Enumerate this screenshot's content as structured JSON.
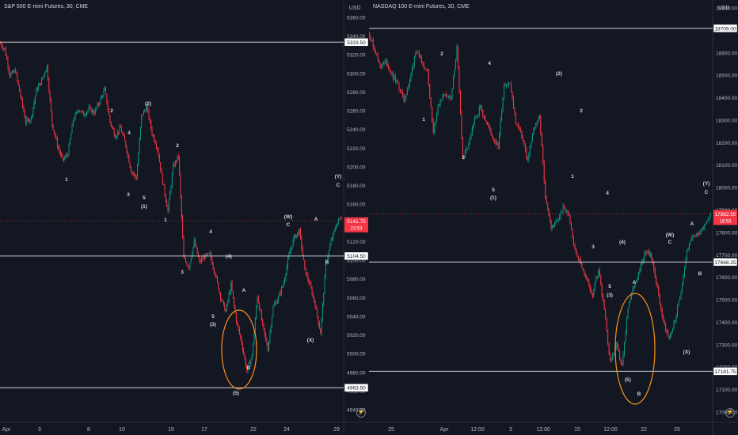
{
  "charts": [
    {
      "id": "spx",
      "title": "S&P 500 E-mini Futures, 30, CME",
      "currency": "USD",
      "y_ticks": [
        5360,
        5340,
        5320,
        5300,
        5280,
        5260,
        5240,
        5220,
        5200,
        5180,
        5160,
        5140,
        5120,
        5100,
        5080,
        5060,
        5040,
        5020,
        5000,
        4980,
        4960,
        4940
      ],
      "y_tick_labels": [
        "5360.00",
        "5340.00",
        "5320.00",
        "5300.00",
        "5280.00",
        "5260.00",
        "5240.00",
        "5220.00",
        "5200.00",
        "5180.00",
        "5160.00",
        "5140.00",
        "5120.00",
        "5100.00",
        "5080.00",
        "5060.00",
        "5040.00",
        "5020.00",
        "5000.00",
        "4980.00",
        "4960.00",
        "4940.00"
      ],
      "x_labels": [
        "Apr",
        "3",
        "8",
        "10",
        "15",
        "17",
        "22",
        "24",
        "29"
      ],
      "levels": [
        {
          "value": 5333.5,
          "label": "5333.50"
        },
        {
          "value": 5104.5,
          "label": "5104.50"
        },
        {
          "value": 4963.5,
          "label": "4963.50"
        }
      ],
      "last_price": {
        "value": 5141.75,
        "label": "5141.75",
        "countdown": "23:53"
      },
      "annotations": [
        "1",
        "2",
        "3",
        "4",
        "5",
        "(1)",
        "(2)",
        "1",
        "2",
        "3",
        "4",
        "5",
        "(3)",
        "(4)",
        "A",
        "B",
        "(5)",
        "(W)",
        "C",
        "(X)",
        "A",
        "B",
        "(Y)",
        "C"
      ]
    },
    {
      "id": "ndx",
      "title": "NASDAQ 100 E-mini Futures, 30, CME",
      "currency": "USD",
      "y_ticks": [
        18800,
        18700,
        18600,
        18500,
        18400,
        18300,
        18200,
        18100,
        18000,
        17900,
        17800,
        17700,
        17600,
        17500,
        17400,
        17300,
        17200,
        17100,
        17000
      ],
      "y_tick_labels": [
        "18800.00",
        "18700.00",
        "18600.00",
        "18500.00",
        "18400.00",
        "18300.00",
        "18200.00",
        "18100.00",
        "18000.00",
        "17900.00",
        "17800.00",
        "17700.00",
        "17600.00",
        "17500.00",
        "17400.00",
        "17300.00",
        "17200.00",
        "17100.00",
        "17000.00"
      ],
      "x_labels": [
        "25",
        "Apr",
        "12:00",
        "3",
        "12:00",
        "15",
        "12:00",
        "22",
        "25"
      ],
      "levels": [
        {
          "value": 18709.0,
          "label": "18709.00"
        },
        {
          "value": 17668.25,
          "label": "17668.25"
        },
        {
          "value": 17181.75,
          "label": "17181.75"
        }
      ],
      "last_price": {
        "value": 17882.5,
        "label": "17882.50",
        "countdown": "16:53"
      },
      "annotations": [
        "1",
        "2",
        "3",
        "4",
        "5",
        "(1)",
        "(2)",
        "1",
        "2",
        "3",
        "4",
        "5",
        "(3)",
        "(4)",
        "A",
        "B",
        "(5)",
        "(W)",
        "C",
        "(X)",
        "A",
        "B",
        "(Y)",
        "C"
      ]
    }
  ],
  "chart_data": [
    {
      "type": "candlestick",
      "title": "S&P 500 E-mini Futures, 30, CME",
      "ylabel": "USD",
      "ylim": [
        4930,
        5370
      ],
      "x_tick_labels": [
        "Apr",
        "3",
        "8",
        "10",
        "15",
        "17",
        "22",
        "24",
        "29"
      ],
      "path_values": [
        5333,
        5326,
        5298,
        5303,
        5276,
        5248,
        5252,
        5282,
        5292,
        5308,
        5246,
        5223,
        5207,
        5214,
        5250,
        5262,
        5256,
        5262,
        5258,
        5270,
        5283,
        5248,
        5233,
        5242,
        5223,
        5196,
        5188,
        5255,
        5264,
        5236,
        5220,
        5184,
        5153,
        5200,
        5212,
        5102,
        5093,
        5120,
        5098,
        5104,
        5106,
        5085,
        5061,
        5045,
        5074,
        5035,
        5012,
        4982,
        4998,
        5062,
        5030,
        5005,
        5050,
        5060,
        5076,
        5105,
        5125,
        5131,
        5090,
        5073,
        5052,
        5022,
        5095,
        5120,
        5138,
        5148
      ],
      "levels": [
        5333.5,
        5104.5,
        4963.5
      ],
      "last_price": 5141.75
    },
    {
      "type": "candlestick",
      "title": "NASDAQ 100 E-mini Futures, 30, CME",
      "ylabel": "USD",
      "ylim": [
        16980,
        18860
      ],
      "x_tick_labels": [
        "25",
        "Apr",
        "12:00",
        "3",
        "12:00",
        "15",
        "12:00",
        "22",
        "25"
      ],
      "path_values": [
        18690,
        18620,
        18540,
        18560,
        18500,
        18460,
        18390,
        18470,
        18610,
        18560,
        18520,
        18250,
        18380,
        18420,
        18390,
        18620,
        18130,
        18190,
        18300,
        18360,
        18290,
        18230,
        18180,
        18460,
        18460,
        18290,
        18230,
        18120,
        18260,
        18320,
        17960,
        17820,
        17850,
        17910,
        17880,
        17720,
        17660,
        17590,
        17520,
        17640,
        17450,
        17220,
        17300,
        17200,
        17460,
        17560,
        17640,
        17720,
        17690,
        17550,
        17400,
        17330,
        17410,
        17540,
        17720,
        17780,
        17800,
        17840,
        17880
      ],
      "levels": [
        18709.0,
        17668.25,
        17181.75
      ],
      "last_price": 17882.5
    }
  ]
}
